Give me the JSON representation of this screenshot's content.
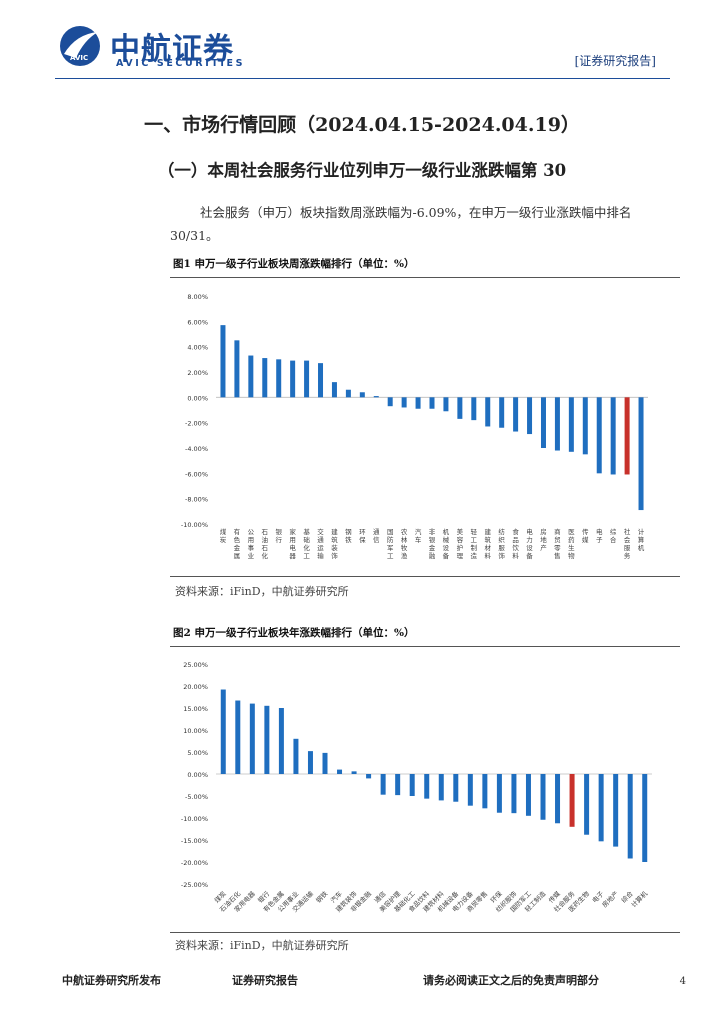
{
  "header": {
    "logo_cn": "中航证券",
    "logo_en": "AVIC SECURITIES",
    "logo_badge": "AVIC",
    "report_tag": "[证券研究报告]"
  },
  "section": {
    "title": "一、市场行情回顾（2024.04.15-2024.04.19）",
    "subtitle": "（一）本周社会服务行业位列申万一级行业涨跌幅第 30",
    "paragraph": "社会服务（申万）板块指数周涨跌幅为-6.09%，在申万一级行业涨跌幅中排名",
    "paragraph_cont": "30/31。"
  },
  "figure1": {
    "caption": "图1  申万一级子行业板块周涨跌幅排行（单位：%）",
    "source": "资料来源：iFinD，中航证券研究所"
  },
  "figure2": {
    "caption": "图2  申万一级子行业板块年涨跌幅排行（单位：%）",
    "source": "资料来源：iFinD，中航证券研究所"
  },
  "chart_data": [
    {
      "type": "bar",
      "title": "",
      "categories": [
        "煤炭",
        "有色金属",
        "公用事业",
        "石油石化",
        "银行",
        "家用电器",
        "基础化工",
        "交通运输",
        "建筑装饰",
        "钢铁",
        "环保",
        "通信",
        "国防军工",
        "农林牧渔",
        "汽车",
        "非银金融",
        "机械设备",
        "美容护理",
        "轻工制造",
        "建筑材料",
        "纺织服饰",
        "食品饮料",
        "电力设备",
        "房地产",
        "商贸零售",
        "医药生物",
        "传媒",
        "电子",
        "综合",
        "社会服务",
        "计算机"
      ],
      "values": [
        5.7,
        4.5,
        3.3,
        3.1,
        3.0,
        2.9,
        2.9,
        2.7,
        1.2,
        0.6,
        0.4,
        0.1,
        -0.7,
        -0.8,
        -0.9,
        -0.9,
        -1.1,
        -1.7,
        -1.8,
        -2.3,
        -2.4,
        -2.7,
        -2.9,
        -4.0,
        -4.2,
        -4.3,
        -4.5,
        -6.0,
        -6.09,
        -6.09,
        -8.9
      ],
      "highlight_index": 29,
      "ylim": [
        -10,
        8
      ],
      "yticks": [
        -10,
        -8,
        -6,
        -4,
        -2,
        0,
        2,
        4,
        6,
        8
      ],
      "tick_labels": [
        "-10.00%",
        "-8.00%",
        "-6.00%",
        "-4.00%",
        "-2.00%",
        "0.00%",
        "2.00%",
        "4.00%",
        "6.00%",
        "8.00%"
      ],
      "bar_color": "#1f6ebf",
      "highlight_color": "#c8312b"
    },
    {
      "type": "bar",
      "title": "",
      "categories": [
        "煤炭",
        "石油石化",
        "家用电器",
        "银行",
        "有色金属",
        "公用事业",
        "交通运输",
        "钢铁",
        "汽车",
        "建筑装饰",
        "非银金融",
        "通信",
        "美容护理",
        "基础化工",
        "食品饮料",
        "建筑材料",
        "机械设备",
        "电力设备",
        "商贸零售",
        "环保",
        "纺织服饰",
        "国防军工",
        "轻工制造",
        "传媒",
        "社会服务",
        "医药生物",
        "电子",
        "房地产",
        "综合",
        "计算机"
      ],
      "values": [
        19.2,
        16.7,
        16.0,
        15.5,
        15.0,
        8.0,
        5.2,
        4.8,
        1.0,
        0.6,
        -1.0,
        -4.7,
        -4.8,
        -5.0,
        -5.6,
        -6.0,
        -6.3,
        -7.2,
        -7.8,
        -8.8,
        -8.9,
        -9.5,
        -10.4,
        -11.2,
        -12.0,
        -13.8,
        -15.3,
        -16.5,
        -19.2,
        -20.0
      ],
      "highlight_index": 24,
      "ylim": [
        -25,
        25
      ],
      "yticks": [
        -25,
        -20,
        -15,
        -10,
        -5,
        0,
        5,
        10,
        15,
        20,
        25
      ],
      "tick_labels": [
        "-25.00%",
        "-20.00%",
        "-15.00%",
        "-10.00%",
        "-5.00%",
        "0.00%",
        "5.00%",
        "10.00%",
        "15.00%",
        "20.00%",
        "25.00%"
      ],
      "bar_color": "#1f6ebf",
      "highlight_color": "#c8312b"
    }
  ],
  "footer": {
    "left": "中航证券研究所发布",
    "center": "证券研究报告",
    "right": "请务必阅读正文之后的免责声明部分",
    "page": "4"
  }
}
